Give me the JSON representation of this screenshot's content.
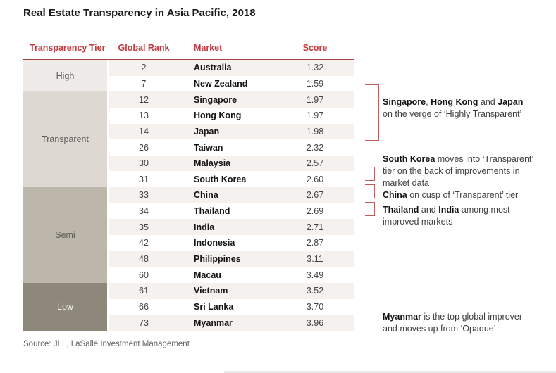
{
  "chart_data": {
    "type": "table",
    "title": "Real Estate Transparency in Asia Pacific, 2018",
    "source": "Source: JLL, LaSalle Investment Management",
    "columns": {
      "tier": "Transparency Tier",
      "rank": "Global Rank",
      "market": "Market",
      "score": "Score"
    },
    "tiers": [
      {
        "label": "High",
        "rows": 2,
        "bg": "#eeebe8"
      },
      {
        "label": "Transparent",
        "rows": 6,
        "bg": "#ddd9d2"
      },
      {
        "label": "Semi",
        "rows": 6,
        "bg": "#bcb6ab"
      },
      {
        "label": "Low",
        "rows": 3,
        "bg": "#8e887b"
      }
    ],
    "rows": [
      {
        "tier": "High",
        "rank": "2",
        "market": "Australia",
        "score": "1.32"
      },
      {
        "tier": "High",
        "rank": "7",
        "market": "New Zealand",
        "score": "1.59"
      },
      {
        "tier": "Transparent",
        "rank": "12",
        "market": "Singapore",
        "score": "1.97"
      },
      {
        "tier": "Transparent",
        "rank": "13",
        "market": "Hong Kong",
        "score": "1.97"
      },
      {
        "tier": "Transparent",
        "rank": "14",
        "market": "Japan",
        "score": "1.98"
      },
      {
        "tier": "Transparent",
        "rank": "26",
        "market": "Taiwan",
        "score": "2.32"
      },
      {
        "tier": "Transparent",
        "rank": "30",
        "market": "Malaysia",
        "score": "2.57"
      },
      {
        "tier": "Transparent",
        "rank": "31",
        "market": "South Korea",
        "score": "2.60"
      },
      {
        "tier": "Semi",
        "rank": "33",
        "market": "China",
        "score": "2.67"
      },
      {
        "tier": "Semi",
        "rank": "34",
        "market": "Thailand",
        "score": "2.69"
      },
      {
        "tier": "Semi",
        "rank": "35",
        "market": "India",
        "score": "2.71"
      },
      {
        "tier": "Semi",
        "rank": "42",
        "market": "Indonesia",
        "score": "2.87"
      },
      {
        "tier": "Semi",
        "rank": "48",
        "market": "Philippines",
        "score": "3.11"
      },
      {
        "tier": "Semi",
        "rank": "60",
        "market": "Macau",
        "score": "3.49"
      },
      {
        "tier": "Low",
        "rank": "61",
        "market": "Vietnam",
        "score": "3.52"
      },
      {
        "tier": "Low",
        "rank": "66",
        "market": "Sri Lanka",
        "score": "3.70"
      },
      {
        "tier": "Low",
        "rank": "73",
        "market": "Myanmar",
        "score": "3.96"
      }
    ],
    "annotations": [
      {
        "text": "Singapore, Hong Kong and Japan on the verge of ‘Highly Transparent’",
        "lines": [
          [
            {
              "t": "Singapore",
              "b": true
            },
            {
              "t": ", ",
              "b": false
            },
            {
              "t": "Hong Kong",
              "b": true
            },
            {
              "t": " and ",
              "b": false
            },
            {
              "t": "Japan",
              "b": true
            }
          ],
          [
            {
              "t": "on the verge of ‘Highly Transparent’",
              "b": false
            }
          ]
        ]
      },
      {
        "text": "South Korea moves into ‘Transparent’ tier on the back of improvements in market data",
        "lines": [
          [
            {
              "t": "South Korea",
              "b": true
            },
            {
              "t": " moves into ‘Transparent’",
              "b": false
            }
          ],
          [
            {
              "t": "tier on the back of improvements in",
              "b": false
            }
          ],
          [
            {
              "t": "market data",
              "b": false
            }
          ]
        ]
      },
      {
        "text": "China on cusp of ‘Transparent’ tier",
        "lines": [
          [
            {
              "t": "China",
              "b": true
            },
            {
              "t": " on cusp of ‘Transparent’ tier",
              "b": false
            }
          ]
        ]
      },
      {
        "text": "Thailand and India among most improved markets",
        "lines": [
          [
            {
              "t": "Thailand",
              "b": true
            },
            {
              "t": " and ",
              "b": false
            },
            {
              "t": "India",
              "b": true
            },
            {
              "t": " among most",
              "b": false
            }
          ],
          [
            {
              "t": "improved markets",
              "b": false
            }
          ]
        ]
      },
      {
        "text": "Myanmar is the top global improver and moves up from ‘Opaque’",
        "lines": [
          [
            {
              "t": "Myanmar",
              "b": true
            },
            {
              "t": " is the top global improver",
              "b": false
            }
          ],
          [
            {
              "t": "and moves up from ‘Opaque’",
              "b": false
            }
          ]
        ]
      }
    ],
    "colors": {
      "header_text": "#c33a40",
      "rule_top": "#c2605d",
      "rule_bottom": "#a64240",
      "bracket": "#c0605e",
      "row_stripe": "#f4f1ee",
      "tier_high_bg": "#eeebe8",
      "tier_transparent_bg": "#ddd9d2",
      "tier_semi_bg": "#bcb6ab",
      "tier_low_bg": "#8e887b"
    }
  }
}
